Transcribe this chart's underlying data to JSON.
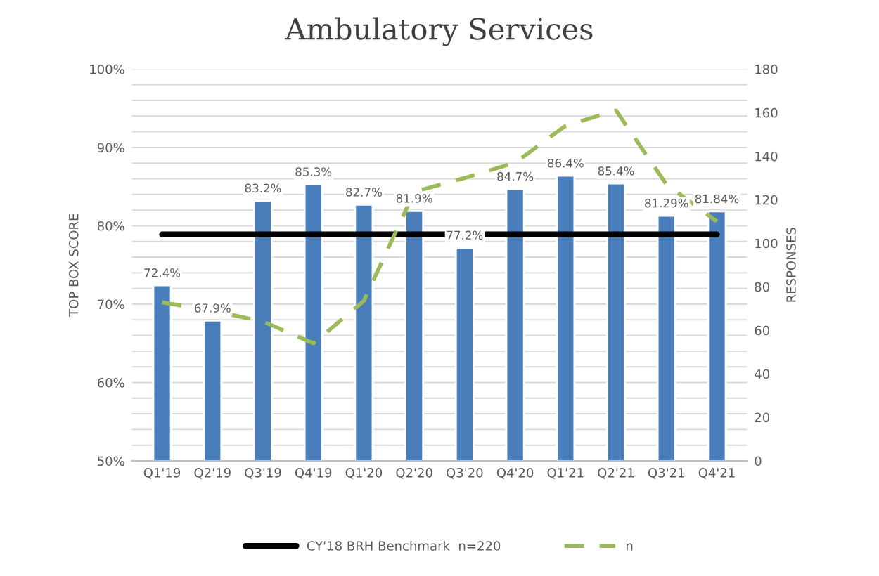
{
  "chart_data": {
    "type": "bar",
    "title": "Ambulatory Services",
    "ylabel": "TOP BOX SCORE",
    "y2label": "RESPONSES",
    "categories": [
      "Q1'19",
      "Q2'19",
      "Q3'19",
      "Q4'19",
      "Q1'20",
      "Q2'20",
      "Q3'20",
      "Q4'20",
      "Q1'21",
      "Q2'21",
      "Q3'21",
      "Q4'21"
    ],
    "series": [
      {
        "type": "line",
        "name": "CY'18 BRH Benchmark  n=220",
        "color": "#000000",
        "line_style": "solid",
        "marker": "none",
        "values": [
          78.9,
          78.9,
          78.9,
          78.9,
          78.9,
          78.9,
          78.9,
          78.9,
          78.9,
          78.9,
          78.9,
          78.9
        ]
      },
      {
        "color": "#4a7ebb",
        "values": [
          72.4,
          67.9,
          83.2,
          85.3,
          82.7,
          81.9,
          77.2,
          84.7,
          86.4,
          85.4,
          81.29,
          81.84
        ],
        "value_labels": [
          "72.4%",
          "67.9%",
          "83.2%",
          "85.3%",
          "82.7%",
          "81.9%",
          "77.2%",
          "84.7%",
          "86.4%",
          "85.4%",
          "81.29%",
          "81.84%"
        ]
      },
      {
        "type": "line",
        "name": "n",
        "axis": "y2",
        "color": "#9bbb59",
        "line_style": "dashed",
        "marker": "none",
        "values": [
          72.8,
          69,
          64,
          54,
          73.5,
          123.6,
          130,
          137,
          154,
          161,
          127,
          110
        ]
      }
    ],
    "ylim": [
      50,
      100
    ],
    "yticks": [
      {
        "value": 50,
        "label": "50%"
      },
      {
        "value": 52,
        "label": null
      },
      {
        "value": 54,
        "label": null
      },
      {
        "value": 56,
        "label": null
      },
      {
        "value": 58,
        "label": null
      },
      {
        "value": 60,
        "label": "60%"
      },
      {
        "value": 62,
        "label": null
      },
      {
        "value": 64,
        "label": null
      },
      {
        "value": 66,
        "label": null
      },
      {
        "value": 68,
        "label": null
      },
      {
        "value": 70,
        "label": "70%"
      },
      {
        "value": 72,
        "label": null
      },
      {
        "value": 74,
        "label": null
      },
      {
        "value": 76,
        "label": null
      },
      {
        "value": 78,
        "label": null
      },
      {
        "value": 80,
        "label": "80%"
      },
      {
        "value": 82,
        "label": null
      },
      {
        "value": 84,
        "label": null
      },
      {
        "value": 86,
        "label": null
      },
      {
        "value": 88,
        "label": null
      },
      {
        "value": 90,
        "label": "90%"
      },
      {
        "value": 92,
        "label": null
      },
      {
        "value": 94,
        "label": null
      },
      {
        "value": 96,
        "label": null
      },
      {
        "value": 98,
        "label": null
      },
      {
        "value": 100,
        "label": "100%"
      }
    ],
    "y2lim": [
      0,
      180
    ],
    "y2ticks": [
      0,
      20,
      40,
      60,
      80,
      100,
      120,
      140,
      160,
      180
    ],
    "grid": "y",
    "legend": "bottom"
  }
}
